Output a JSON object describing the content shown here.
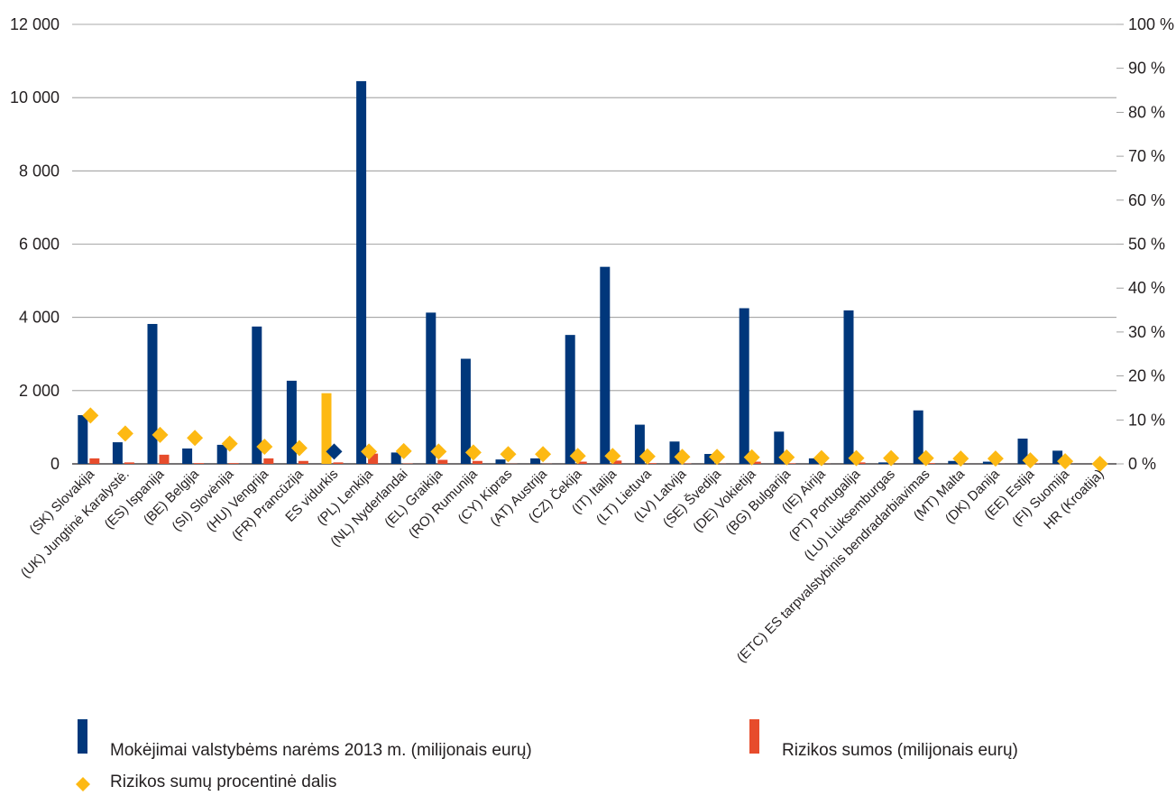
{
  "chart_data": {
    "type": "bar",
    "categories": [
      "(SK) Slovakija",
      "(UK) Jungtinė Karalystė.",
      "(ES) Ispanija",
      "(BE) Belgija",
      "(SI) Slovėnija",
      "(HU) Vengrija",
      "(FR) Prancūzija",
      "ES vidurkis",
      "(PL) Lenkija",
      "(NL) Nyderlandai",
      "(EL) Graikija",
      "(RO) Rumunija",
      "(CY) Kipras",
      "(AT) Austrija",
      "(CZ) Čekija",
      "(IT) Italija",
      "(LT) Lietuva",
      "(LV) Latvija",
      "(SE) Švedija",
      "(DE) Vokietija",
      "(BG) Bulgarija",
      "(IE) Airija",
      "(PT) Portugalija",
      "(LU) Liuksemburgas",
      "(ETC) ES tarpvalstybinis bendradarbiavimas",
      "(MT) Malta",
      "(DK) Danija",
      "(EE) Estija",
      "(FI) Suomija",
      "HR (Kroatija)"
    ],
    "series": [
      {
        "name": "Mokėjimai valstybėms narėms 2013 m. (milijonais eurų)",
        "axis": "left",
        "color": "#00377b",
        "values": [
          1330,
          590,
          3820,
          420,
          520,
          3750,
          2270,
          0,
          10450,
          310,
          4130,
          2870,
          120,
          150,
          3520,
          5380,
          1070,
          610,
          270,
          4250,
          880,
          150,
          4190,
          40,
          1460,
          80,
          60,
          690,
          360,
          0
        ]
      },
      {
        "name": "Rizikos sumos (milijonais eurų)",
        "axis": "left",
        "color": "#e74c2c",
        "values": [
          150,
          40,
          250,
          20,
          20,
          150,
          80,
          40,
          280,
          10,
          110,
          80,
          5,
          5,
          60,
          90,
          20,
          10,
          5,
          60,
          15,
          5,
          40,
          2,
          20,
          3,
          3,
          10,
          3,
          0
        ]
      },
      {
        "name": "Rizikos sumų procentinė dalis",
        "axis": "right",
        "color": "#fdb913",
        "marker": "diamond",
        "values": [
          11,
          6.9,
          6.6,
          5.9,
          4.6,
          3.9,
          3.6,
          2.8,
          2.8,
          2.9,
          2.8,
          2.6,
          2.2,
          2.2,
          1.8,
          1.8,
          1.7,
          1.6,
          1.6,
          1.5,
          1.5,
          1.3,
          1.3,
          1.3,
          1.3,
          1.2,
          1.2,
          0.8,
          0.6,
          0
        ]
      }
    ],
    "highlight": {
      "category": "ES vidurkis",
      "bar_value": 1930,
      "bar_color": "#fdb913",
      "marker_color": "#00377b"
    },
    "y_left": {
      "ylim": [
        0,
        12000
      ],
      "ticks": [
        0,
        2000,
        4000,
        6000,
        8000,
        10000,
        12000
      ],
      "tick_labels": [
        "0",
        "2 000",
        "4 000",
        "6 000",
        "8 000",
        "10 000",
        "12 000"
      ]
    },
    "y_right": {
      "ylim": [
        0,
        100
      ],
      "ticks": [
        0,
        10,
        20,
        30,
        40,
        50,
        60,
        70,
        80,
        90,
        100
      ],
      "tick_labels": [
        "0 %",
        "10 %",
        "20 %",
        "30 %",
        "40 %",
        "50 %",
        "60 %",
        "70 %",
        "80 %",
        "90 %",
        "100 %"
      ]
    },
    "grid": true,
    "gridline_color": "#8c8c8c",
    "legend_position": "bottom"
  }
}
